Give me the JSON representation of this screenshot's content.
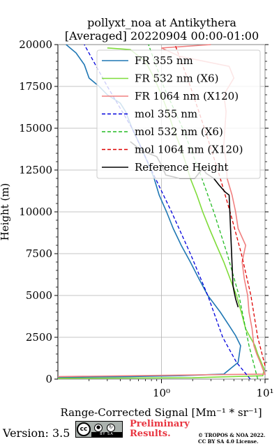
{
  "header": {
    "title_line1": "pollyxt_noa at Antikythera",
    "title_line2": "[Averaged] 20220904 00:00-01:00"
  },
  "footer": {
    "version": "Version: 3.5",
    "license_badge": {
      "icon_names": [
        "cc-icon",
        "by-icon",
        "sa-icon"
      ],
      "strip_text": "BY   SA",
      "bg_color": "#aab1ad"
    },
    "preliminary_line1": "Preliminary",
    "preliminary_line2": "Results.",
    "preliminary_color": "#e8343f",
    "copyright_line1": "© TROPOS & NOA 2022.",
    "copyright_line2": "CC BY SA 4.0 License."
  },
  "chart_data": {
    "type": "line",
    "title": "pollyxt_noa at Antikythera [Averaged] 20220904 00:00-01:00",
    "xlabel": "Range-Corrected Signal [Mm⁻¹ * sr⁻¹]",
    "ylabel": "Height (m)",
    "xscale": "log",
    "xlim": [
      0.1,
      10
    ],
    "ylim": [
      0,
      20000
    ],
    "x_ticks": [
      "10⁰",
      "10¹"
    ],
    "y_ticks": [
      0,
      2500,
      5000,
      7500,
      10000,
      12500,
      15000,
      17500,
      20000
    ],
    "grid": true,
    "legend_position": "top-right",
    "series": [
      {
        "name": "FR 355 nm",
        "color": "#1f77b4",
        "style": "solid",
        "points": [
          [
            0.1,
            100
          ],
          [
            0.5,
            150
          ],
          [
            1.5,
            200
          ],
          [
            4,
            300
          ],
          [
            5.5,
            1000
          ],
          [
            5.8,
            2000
          ],
          [
            5.2,
            2600
          ],
          [
            4.5,
            3200
          ],
          [
            3.7,
            4000
          ],
          [
            2.8,
            5000
          ],
          [
            2.3,
            6000
          ],
          [
            1.9,
            7000
          ],
          [
            1.55,
            8000
          ],
          [
            1.3,
            9000
          ],
          [
            1.12,
            10000
          ],
          [
            0.95,
            11000
          ],
          [
            0.85,
            12000
          ],
          [
            0.73,
            13000
          ],
          [
            0.62,
            14000
          ],
          [
            0.52,
            15000
          ],
          [
            0.45,
            16000
          ],
          [
            0.4,
            16500
          ],
          [
            0.3,
            17000
          ],
          [
            0.25,
            17500
          ],
          [
            0.2,
            18000
          ],
          [
            0.18,
            18800
          ],
          [
            0.15,
            19500
          ],
          [
            0.12,
            20000
          ]
        ]
      },
      {
        "name": "FR 532 nm (X6)",
        "color": "#7fdc3a",
        "style": "solid",
        "points": [
          [
            0.1,
            50
          ],
          [
            2,
            80
          ],
          [
            9.5,
            200
          ],
          [
            9.8,
            600
          ],
          [
            8.5,
            1500
          ],
          [
            8,
            2000
          ],
          [
            7.2,
            2500
          ],
          [
            6.5,
            3000
          ],
          [
            5.9,
            4000
          ],
          [
            5.3,
            5000
          ],
          [
            4.6,
            6000
          ],
          [
            4,
            7000
          ],
          [
            3.4,
            8000
          ],
          [
            2.9,
            9000
          ],
          [
            2.5,
            10000
          ],
          [
            2.2,
            11000
          ],
          [
            1.9,
            12000
          ],
          [
            1.7,
            13000
          ],
          [
            1.5,
            14000
          ],
          [
            1.3,
            15000
          ],
          [
            1.15,
            16000
          ],
          [
            1.0,
            17000
          ],
          [
            0.85,
            18000
          ],
          [
            0.7,
            19000
          ],
          [
            0.5,
            19700
          ],
          [
            0.3,
            19800
          ]
        ]
      },
      {
        "name": "FR 1064 nm (X120)",
        "color": "#f08080",
        "style": "solid",
        "points": [
          [
            0.1,
            150
          ],
          [
            10,
            300
          ],
          [
            9.5,
            600
          ],
          [
            9,
            1000
          ],
          [
            8.3,
            1500
          ],
          [
            7.8,
            2000
          ],
          [
            7.5,
            3000
          ],
          [
            7,
            4000
          ],
          [
            6.8,
            5000
          ],
          [
            6.3,
            6000
          ],
          [
            6,
            7000
          ],
          [
            6.5,
            8000
          ],
          [
            5.5,
            9000
          ],
          [
            5.2,
            10000
          ],
          [
            4.8,
            11000
          ],
          [
            4.3,
            12000
          ],
          [
            4.2,
            13000
          ],
          [
            4.0,
            14000
          ],
          [
            4.1,
            15000
          ],
          [
            4.2,
            16000
          ],
          [
            4.0,
            17000
          ],
          [
            5.0,
            18000
          ],
          [
            4.5,
            18700
          ],
          [
            1.5,
            19300
          ],
          [
            1.0,
            19800
          ],
          [
            3.0,
            20000
          ]
        ]
      },
      {
        "name": "mol 355 nm",
        "color": "#0000dd",
        "style": "dashed",
        "points": [
          [
            7.2,
            0
          ],
          [
            5.3,
            1000
          ],
          [
            3.9,
            2500
          ],
          [
            2.8,
            5000
          ],
          [
            1.9,
            7500
          ],
          [
            1.25,
            10000
          ],
          [
            0.8,
            12500
          ],
          [
            0.52,
            15000
          ],
          [
            0.3,
            17500
          ],
          [
            0.18,
            20000
          ]
        ]
      },
      {
        "name": "mol 532 nm (X6)",
        "color": "#22bb22",
        "style": "dashed",
        "points": [
          [
            8.5,
            0
          ],
          [
            7.0,
            2000
          ],
          [
            5.6,
            5000
          ],
          [
            4.3,
            7500
          ],
          [
            3.2,
            10000
          ],
          [
            2.3,
            12500
          ],
          [
            1.6,
            15000
          ],
          [
            1.05,
            17500
          ],
          [
            0.75,
            20000
          ]
        ]
      },
      {
        "name": "mol 1064 nm (X120)",
        "color": "#dd0000",
        "style": "dashed",
        "points": [
          [
            10,
            800
          ],
          [
            8.5,
            2500
          ],
          [
            7.3,
            5000
          ],
          [
            5.9,
            7500
          ],
          [
            4.6,
            10000
          ],
          [
            3.5,
            12500
          ],
          [
            2.6,
            15000
          ],
          [
            1.9,
            17500
          ],
          [
            1.35,
            20000
          ]
        ]
      },
      {
        "name": "Reference Height",
        "color": "#000000",
        "style": "solid",
        "points": [
          [
            5.5,
            4300
          ],
          [
            5.2,
            4800
          ],
          [
            5.0,
            5300
          ],
          [
            4.9,
            5600
          ],
          [
            4.5,
            11000
          ],
          [
            4.1,
            11200
          ],
          [
            3.6,
            11600
          ],
          [
            3.2,
            12000
          ],
          [
            2.7,
            12300
          ],
          [
            2.5,
            12600
          ],
          [
            2.1,
            12000
          ],
          [
            1.5,
            12000
          ],
          [
            1.1,
            12200
          ],
          [
            1.0,
            12800
          ],
          [
            0.9,
            13300
          ],
          [
            0.75,
            13500
          ],
          [
            0.62,
            13700
          ],
          [
            0.55,
            14000
          ],
          [
            0.5,
            14200
          ]
        ]
      }
    ]
  }
}
